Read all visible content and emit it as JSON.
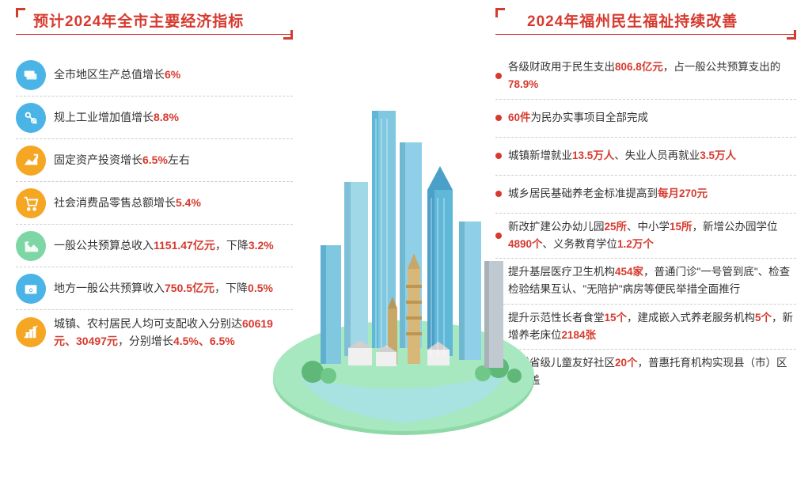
{
  "colors": {
    "accent": "#d63a2e",
    "text": "#333333",
    "divider": "#cccccc",
    "icon_bg": [
      "#4ab4e6",
      "#4ab4e6",
      "#f5a623",
      "#f5a623",
      "#7ed6a5",
      "#4ab4e6",
      "#f5a623"
    ],
    "city_base": "#8fd9a8",
    "city_water": "#a8e0e8",
    "bldg_blues": [
      "#5fb8d8",
      "#7fc8e0",
      "#4aa0c8",
      "#8fd0e8"
    ],
    "bldg_tan": "#d8b878",
    "bldg_gray": "#c0c8d0"
  },
  "typography": {
    "title_fontsize": 19,
    "body_fontsize": 14,
    "right_fontsize": 13.5,
    "title_weight": 700
  },
  "left": {
    "title": "预计2024年全市主要经济指标",
    "items": [
      {
        "pre": "全市地区生产总值增长",
        "hl": "6%",
        "post": ""
      },
      {
        "pre": "规上工业增加值增长",
        "hl": "8.8%",
        "post": ""
      },
      {
        "pre": "固定资产投资增长",
        "hl": "6.5%",
        "post": "左右"
      },
      {
        "pre": "社会消费品零售总额增长",
        "hl": "5.4%",
        "post": ""
      },
      {
        "pre": "一般公共预算总收入",
        "hl": "1151.47亿元",
        "post": "，下降",
        "hl2": "3.2%"
      },
      {
        "pre": "地方一般公共预算收入",
        "hl": "750.5亿元",
        "post": "，下降",
        "hl2": "0.5%"
      },
      {
        "pre": "城镇、农村居民人均可支配收入分别达",
        "hl": "60619元、30497元",
        "post": "，分别增长",
        "hl2": "4.5%、6.5%"
      }
    ]
  },
  "right": {
    "title": "2024年福州民生福祉持续改善",
    "items": [
      {
        "segments": [
          {
            "t": "各级财政用于民生支出"
          },
          {
            "t": "806.8亿元",
            "hl": true
          },
          {
            "t": "，占一般公共预算支出的"
          },
          {
            "t": "78.9%",
            "hl": true
          }
        ]
      },
      {
        "segments": [
          {
            "t": "60件",
            "hl": true
          },
          {
            "t": "为民办实事项目全部完成"
          }
        ]
      },
      {
        "segments": [
          {
            "t": "城镇新增就业"
          },
          {
            "t": "13.5万人",
            "hl": true
          },
          {
            "t": "、失业人员再就业"
          },
          {
            "t": "3.5万人",
            "hl": true
          }
        ]
      },
      {
        "segments": [
          {
            "t": "城乡居民基础养老金标准提高到"
          },
          {
            "t": "每月270元",
            "hl": true
          }
        ]
      },
      {
        "segments": [
          {
            "t": "新改扩建公办幼儿园"
          },
          {
            "t": "25所",
            "hl": true
          },
          {
            "t": "、中小学"
          },
          {
            "t": "15所",
            "hl": true
          },
          {
            "t": "，新增公办园学位"
          },
          {
            "t": "4890个",
            "hl": true
          },
          {
            "t": "、义务教育学位"
          },
          {
            "t": "1.2万个",
            "hl": true
          }
        ]
      },
      {
        "segments": [
          {
            "t": "提升基层医疗卫生机构"
          },
          {
            "t": "454家",
            "hl": true
          },
          {
            "t": "，普通门诊\"一号管到底\"、检查检验结果互认、\"无陪护\"病房等便民举措全面推行"
          }
        ]
      },
      {
        "segments": [
          {
            "t": "提升示范性长者食堂"
          },
          {
            "t": "15个",
            "hl": true
          },
          {
            "t": "，建成嵌入式养老服务机构"
          },
          {
            "t": "5个",
            "hl": true
          },
          {
            "t": "，新增养老床位"
          },
          {
            "t": "2184张",
            "hl": true
          }
        ]
      },
      {
        "segments": [
          {
            "t": "新增省级儿童友好社区"
          },
          {
            "t": "20个",
            "hl": true
          },
          {
            "t": "，普惠托育机构实现县（市）区全覆盖"
          }
        ]
      }
    ]
  }
}
